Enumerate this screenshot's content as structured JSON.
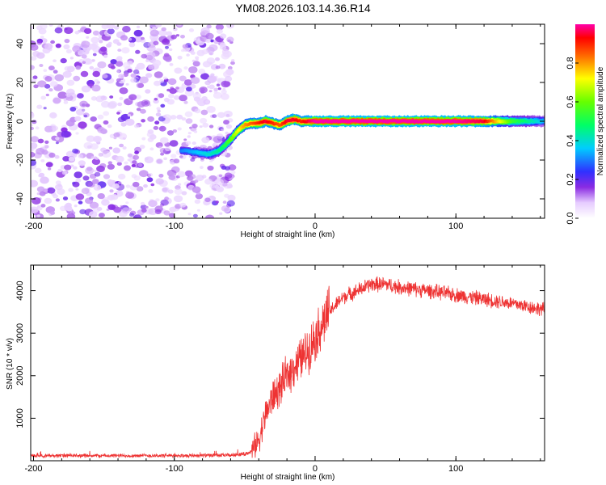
{
  "title": "YM08.2026.103.14.36.R14",
  "colors": {
    "snr_line": "#ee3333",
    "frame": "#000000",
    "noise": "#8a2be2"
  },
  "chart_data": [
    {
      "type": "heatmap",
      "title": "YM08.2026.103.14.36.R14",
      "xlabel": "Height of straight line (km)",
      "ylabel": "Frequency (Hz)",
      "xlim": [
        -202,
        163
      ],
      "ylim": [
        -50,
        50
      ],
      "xticks": [
        -200,
        -100,
        0,
        100
      ],
      "yticks": [
        -40,
        -20,
        0,
        20,
        40
      ],
      "colorbar": {
        "label": "Normalized spectral amplitude",
        "range": [
          0.0,
          1.0
        ],
        "ticks": [
          0.0,
          0.2,
          0.4,
          0.6,
          0.8
        ],
        "tick_labels": [
          "0.0",
          "0.2",
          "0.4",
          "0.6",
          "0.8"
        ]
      },
      "ridge": {
        "x": [
          -95,
          -85,
          -75,
          -68,
          -62,
          -55,
          -50,
          -45,
          -40,
          -35,
          -30,
          -25,
          -20,
          -15,
          -10,
          -5,
          0,
          20,
          50,
          100,
          120,
          140,
          163
        ],
        "y": [
          -15,
          -16,
          -17,
          -15,
          -11,
          -5,
          -2,
          -1,
          -1,
          0,
          -1,
          -2,
          0,
          1,
          0,
          0,
          0,
          0,
          0,
          0,
          0,
          0,
          0
        ],
        "amplitude": [
          0.3,
          0.35,
          0.4,
          0.45,
          0.55,
          0.7,
          0.8,
          0.85,
          0.9,
          0.95,
          0.9,
          0.85,
          0.95,
          0.95,
          0.9,
          0.95,
          1.0,
          1.0,
          1.0,
          1.0,
          0.95,
          0.55,
          0.35
        ]
      },
      "noise_region_x": [
        -202,
        -58
      ]
    },
    {
      "type": "line",
      "xlabel": "Height of straight line (km)",
      "ylabel": "SNR (10 * v/v)",
      "xlim": [
        -202,
        163
      ],
      "ylim": [
        0,
        4600
      ],
      "xticks": [
        -200,
        -100,
        0,
        100
      ],
      "yticks": [
        1000,
        2000,
        3000,
        4000
      ],
      "series": [
        {
          "name": "SNR",
          "x": [
            -202,
            -150,
            -100,
            -60,
            -50,
            -45,
            -40,
            -35,
            -30,
            -25,
            -20,
            -15,
            -10,
            -5,
            0,
            5,
            10,
            20,
            30,
            40,
            50,
            60,
            80,
            100,
            120,
            140,
            163
          ],
          "y": [
            120,
            120,
            120,
            130,
            160,
            220,
            500,
            1100,
            1500,
            1700,
            2000,
            2200,
            2400,
            2600,
            2900,
            3200,
            3500,
            3850,
            4000,
            4150,
            4150,
            4080,
            4000,
            3900,
            3800,
            3700,
            3550
          ]
        }
      ]
    }
  ]
}
